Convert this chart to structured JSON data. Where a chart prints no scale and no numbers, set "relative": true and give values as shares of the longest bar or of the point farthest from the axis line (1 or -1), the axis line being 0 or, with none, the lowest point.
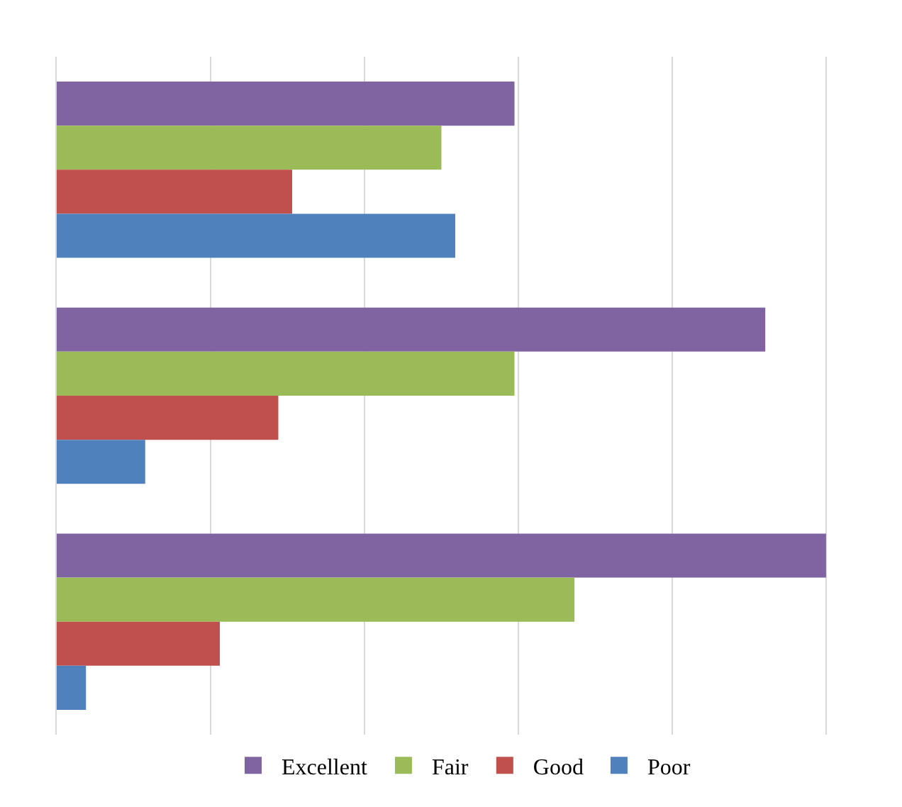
{
  "chart_data": {
    "type": "bar",
    "orientation": "horizontal",
    "relative": true,
    "categories": [
      null,
      null,
      null
    ],
    "series": [
      {
        "name": "Excellent",
        "color": "#8064a2",
        "values": [
          0.595,
          0.921,
          1
        ]
      },
      {
        "name": "Fair",
        "color": "#9bbb59",
        "values": [
          0.5,
          0.595,
          0.673
        ]
      },
      {
        "name": "Good",
        "color": "#c0504d",
        "values": [
          0.306,
          0.288,
          0.212
        ]
      },
      {
        "name": "Poor",
        "color": "#4f81bd",
        "values": [
          0.518,
          0.115,
          0.038
        ]
      }
    ],
    "grid": "x",
    "legend": "bottom"
  }
}
